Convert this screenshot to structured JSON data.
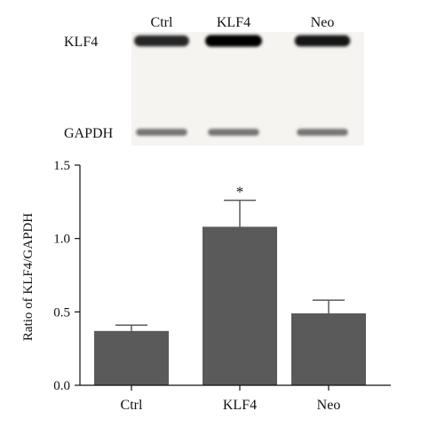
{
  "blot": {
    "lanes": [
      "Ctrl",
      "KLF4",
      "Neo"
    ],
    "rows": [
      {
        "label": "KLF4",
        "intensities": [
          0.85,
          1.0,
          0.9
        ]
      },
      {
        "label": "GAPDH",
        "intensities": [
          0.55,
          0.55,
          0.55
        ]
      }
    ]
  },
  "chart_data": {
    "type": "bar",
    "categories": [
      "Ctrl",
      "KLF4",
      "Neo"
    ],
    "values": [
      0.37,
      1.08,
      0.49
    ],
    "errors": [
      0.04,
      0.18,
      0.09
    ],
    "annotations": [
      "",
      "*",
      ""
    ],
    "title": "",
    "xlabel": "",
    "ylabel": "Ratio of KLF4/GAPDH",
    "ylim": [
      0,
      1.5
    ],
    "yticks": [
      0.0,
      0.5,
      1.0,
      1.5
    ],
    "ytick_labels": [
      "0.0",
      "0.5",
      "1.0",
      "1.5"
    ],
    "grid": false,
    "legend": "none",
    "bar_color": "#5a5a5a"
  }
}
